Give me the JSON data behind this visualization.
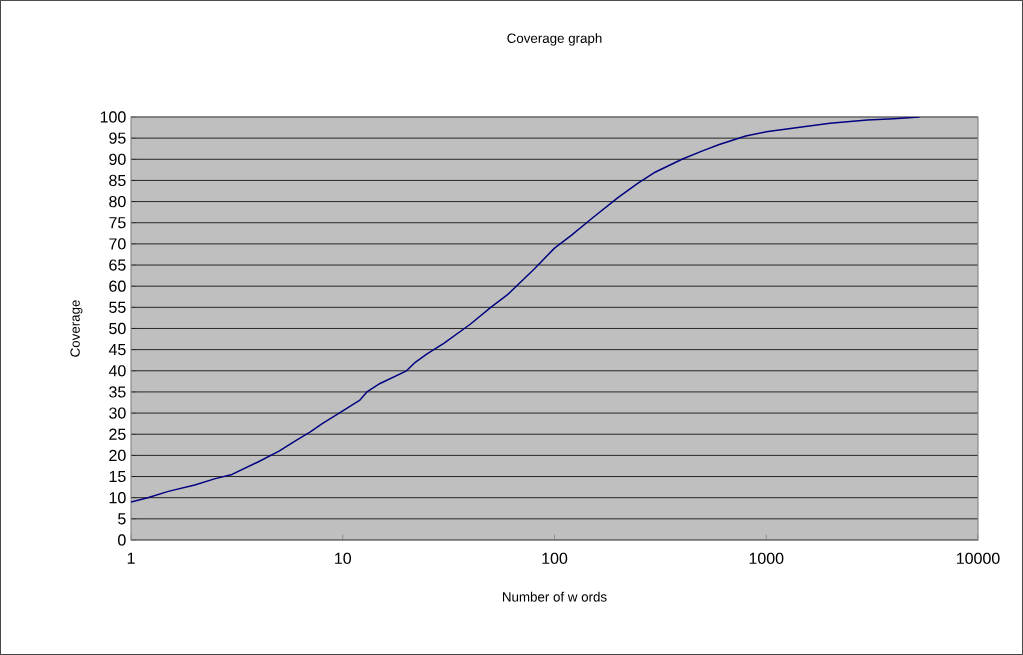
{
  "chart_data": {
    "type": "line",
    "title": "Coverage graph",
    "xlabel": "Number of w ords",
    "ylabel": "Coverage",
    "x": [
      1,
      1.2,
      1.5,
      2,
      2.5,
      3,
      4,
      5,
      6,
      7,
      8,
      10,
      12,
      13,
      15,
      20,
      22,
      25,
      30,
      40,
      50,
      60,
      80,
      100,
      120,
      150,
      200,
      250,
      300,
      400,
      500,
      600,
      800,
      1000,
      1500,
      2000,
      3000,
      4000,
      5300
    ],
    "series": [
      {
        "color": "#000080",
        "values": [
          9,
          10,
          11.5,
          13,
          14.5,
          15.5,
          18.5,
          21,
          23.5,
          25.5,
          27.5,
          30.5,
          33,
          35,
          37,
          40,
          42,
          44,
          46.5,
          51,
          55,
          58,
          64,
          69,
          72,
          76,
          81,
          84.5,
          87,
          90,
          92,
          93.5,
          95.5,
          96.5,
          97.7,
          98.5,
          99.3,
          99.6,
          100
        ]
      }
    ],
    "log": "x",
    "xlim": [
      1,
      10000
    ],
    "ylim": [
      0,
      100
    ],
    "xticks": [
      1,
      10,
      100,
      1000,
      10000
    ],
    "yticks": [
      0,
      5,
      10,
      15,
      20,
      25,
      30,
      35,
      40,
      45,
      50,
      55,
      60,
      65,
      70,
      75,
      80,
      85,
      90,
      95,
      100
    ],
    "grid": "y",
    "marker": "none",
    "line_style": "solid"
  }
}
